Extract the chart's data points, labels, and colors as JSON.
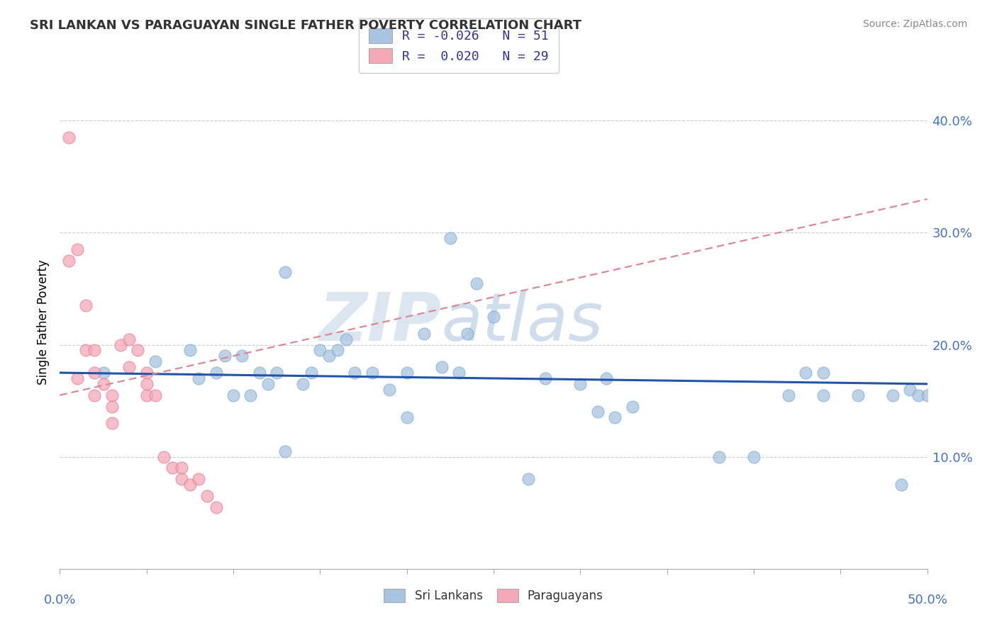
{
  "title": "SRI LANKAN VS PARAGUAYAN SINGLE FATHER POVERTY CORRELATION CHART",
  "source": "Source: ZipAtlas.com",
  "ylabel": "Single Father Poverty",
  "right_yticks": [
    "10.0%",
    "20.0%",
    "30.0%",
    "40.0%"
  ],
  "right_ytick_vals": [
    0.1,
    0.2,
    0.3,
    0.4
  ],
  "xlim": [
    0.0,
    0.5
  ],
  "ylim": [
    0.0,
    0.44
  ],
  "sri_color": "#a8c4e0",
  "sri_edge_color": "#7aadd4",
  "par_color": "#f4a8b8",
  "par_edge_color": "#e87a99",
  "sri_line_color": "#2255aa",
  "par_line_color": "#e08090",
  "watermark_zip": "ZIP",
  "watermark_atlas": "atlas",
  "sri_scatter_x": [
    0.025,
    0.055,
    0.075,
    0.08,
    0.09,
    0.095,
    0.1,
    0.105,
    0.11,
    0.115,
    0.12,
    0.125,
    0.13,
    0.14,
    0.145,
    0.15,
    0.155,
    0.16,
    0.165,
    0.17,
    0.18,
    0.19,
    0.2,
    0.21,
    0.22,
    0.225,
    0.23,
    0.235,
    0.24,
    0.25,
    0.28,
    0.3,
    0.31,
    0.315,
    0.32,
    0.33,
    0.38,
    0.4,
    0.42,
    0.44,
    0.46,
    0.48,
    0.485,
    0.49,
    0.495,
    0.5,
    0.13,
    0.2,
    0.27,
    0.43,
    0.44
  ],
  "sri_scatter_y": [
    0.175,
    0.185,
    0.195,
    0.17,
    0.175,
    0.19,
    0.155,
    0.19,
    0.155,
    0.175,
    0.165,
    0.175,
    0.265,
    0.165,
    0.175,
    0.195,
    0.19,
    0.195,
    0.205,
    0.175,
    0.175,
    0.16,
    0.175,
    0.21,
    0.18,
    0.295,
    0.175,
    0.21,
    0.255,
    0.225,
    0.17,
    0.165,
    0.14,
    0.17,
    0.135,
    0.145,
    0.1,
    0.1,
    0.155,
    0.155,
    0.155,
    0.155,
    0.075,
    0.16,
    0.155,
    0.155,
    0.105,
    0.135,
    0.08,
    0.175,
    0.175
  ],
  "par_scatter_x": [
    0.005,
    0.005,
    0.01,
    0.01,
    0.015,
    0.015,
    0.02,
    0.02,
    0.02,
    0.025,
    0.03,
    0.03,
    0.03,
    0.035,
    0.04,
    0.04,
    0.045,
    0.05,
    0.05,
    0.05,
    0.055,
    0.06,
    0.065,
    0.07,
    0.07,
    0.075,
    0.08,
    0.085,
    0.09
  ],
  "par_scatter_y": [
    0.385,
    0.275,
    0.285,
    0.17,
    0.235,
    0.195,
    0.195,
    0.175,
    0.155,
    0.165,
    0.155,
    0.145,
    0.13,
    0.2,
    0.205,
    0.18,
    0.195,
    0.175,
    0.165,
    0.155,
    0.155,
    0.1,
    0.09,
    0.09,
    0.08,
    0.075,
    0.08,
    0.065,
    0.055
  ]
}
